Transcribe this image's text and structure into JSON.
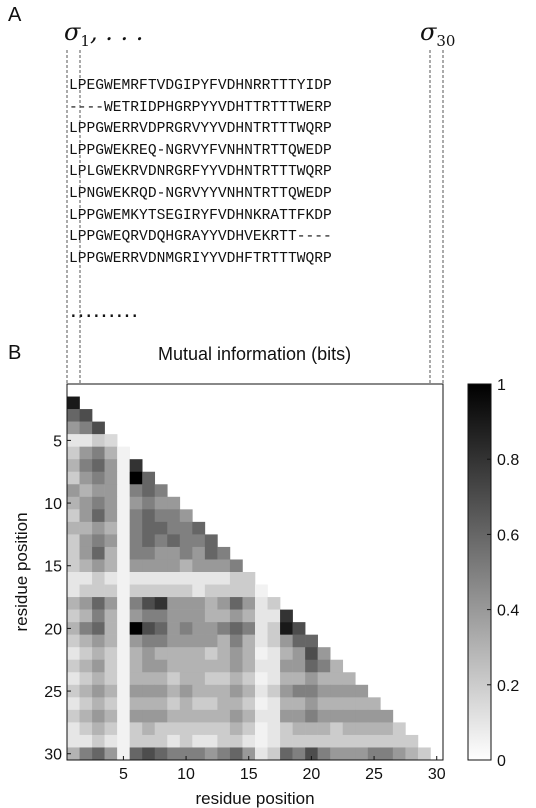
{
  "panels": {
    "a_label": "A",
    "b_label": "B"
  },
  "sigma": {
    "left_symbol": "σ",
    "left_subscript": "1",
    "left_suffix": ", . . .",
    "right_symbol": "σ",
    "right_subscript": "30"
  },
  "sequences": [
    "LPEGWEMRFTVDGIPYFVDHNRRTTTYIDP",
    "----WETRIDPHGRPYYVDHTTRTTTWERP",
    "LPPGWERRVDPRGRVYYVDHNTRTTTWQRP",
    "LPPGWEKREQ-NGRVYFVNHNTRTTQWEDP",
    "LPLGWEKRVDNRGRFYYVDHNTRTTTWQRP",
    "LPNGWEKRQD-NGRVYYVNHNTRTTQWEDP",
    "LPPGWEMKYTSEGIRYFVDHNKRATTFKDP",
    "LPPGWEQRVDQHGRAYYVDHVEKRTT----",
    "LPPGWERRVDNMGRIYYVDHFTRTTTWQRP"
  ],
  "ellipsis": ".........",
  "chart_data": {
    "type": "heatmap",
    "title": "Mutual information (bits)",
    "xlabel": "residue position",
    "ylabel": "residue position",
    "x_ticks": [
      5,
      10,
      15,
      20,
      25,
      30
    ],
    "y_ticks": [
      5,
      10,
      15,
      20,
      25,
      30
    ],
    "n": 30,
    "colorbar": {
      "min": 0,
      "max": 1,
      "ticks": [
        0,
        0.2,
        0.4,
        0.6,
        0.8,
        1
      ],
      "colormap": "white-to-black"
    },
    "rows": [
      [],
      [
        0.9
      ],
      [
        0.6,
        0.7
      ],
      [
        0.4,
        0.5,
        0.7
      ],
      [
        0.1,
        0.1,
        0.2,
        0.15
      ],
      [
        0.2,
        0.4,
        0.5,
        0.3,
        0.05
      ],
      [
        0.3,
        0.5,
        0.6,
        0.4,
        0.05,
        0.8
      ],
      [
        0.2,
        0.4,
        0.5,
        0.4,
        0.05,
        1.0,
        0.6
      ],
      [
        0.4,
        0.3,
        0.4,
        0.4,
        0.05,
        0.5,
        0.6,
        0.5
      ],
      [
        0.3,
        0.4,
        0.5,
        0.4,
        0.05,
        0.4,
        0.5,
        0.4,
        0.4
      ],
      [
        0.2,
        0.4,
        0.6,
        0.4,
        0.05,
        0.5,
        0.6,
        0.5,
        0.5,
        0.4
      ],
      [
        0.3,
        0.3,
        0.4,
        0.3,
        0.05,
        0.5,
        0.6,
        0.6,
        0.5,
        0.5,
        0.6
      ],
      [
        0.2,
        0.4,
        0.5,
        0.4,
        0.05,
        0.5,
        0.6,
        0.5,
        0.6,
        0.5,
        0.5,
        0.6
      ],
      [
        0.2,
        0.4,
        0.6,
        0.3,
        0.05,
        0.5,
        0.5,
        0.4,
        0.4,
        0.5,
        0.4,
        0.6,
        0.5
      ],
      [
        0.2,
        0.3,
        0.4,
        0.3,
        0.05,
        0.4,
        0.4,
        0.4,
        0.4,
        0.3,
        0.4,
        0.4,
        0.4,
        0.5
      ],
      [
        0.1,
        0.1,
        0.2,
        0.1,
        0.05,
        0.1,
        0.1,
        0.1,
        0.1,
        0.1,
        0.1,
        0.1,
        0.1,
        0.2,
        0.2
      ],
      [
        0.1,
        0.2,
        0.2,
        0.2,
        0.05,
        0.2,
        0.2,
        0.2,
        0.2,
        0.2,
        0.1,
        0.2,
        0.2,
        0.2,
        0.2,
        0.05
      ],
      [
        0.3,
        0.4,
        0.6,
        0.4,
        0.05,
        0.5,
        0.7,
        0.8,
        0.4,
        0.4,
        0.4,
        0.3,
        0.4,
        0.6,
        0.4,
        0.1,
        0.2
      ],
      [
        0.2,
        0.3,
        0.5,
        0.3,
        0.05,
        0.4,
        0.5,
        0.5,
        0.4,
        0.4,
        0.4,
        0.3,
        0.3,
        0.4,
        0.3,
        0.1,
        0.1,
        0.8
      ],
      [
        0.3,
        0.5,
        0.6,
        0.3,
        0.05,
        1.0,
        0.7,
        0.6,
        0.4,
        0.5,
        0.4,
        0.4,
        0.5,
        0.6,
        0.5,
        0.1,
        0.2,
        0.9,
        0.7
      ],
      [
        0.2,
        0.3,
        0.4,
        0.3,
        0.05,
        0.4,
        0.5,
        0.5,
        0.4,
        0.4,
        0.4,
        0.4,
        0.3,
        0.5,
        0.3,
        0.1,
        0.2,
        0.4,
        0.6,
        0.6
      ],
      [
        0.1,
        0.2,
        0.3,
        0.2,
        0.05,
        0.3,
        0.4,
        0.3,
        0.3,
        0.3,
        0.3,
        0.2,
        0.3,
        0.4,
        0.3,
        0.05,
        0.1,
        0.3,
        0.4,
        0.7,
        0.4
      ],
      [
        0.2,
        0.3,
        0.4,
        0.2,
        0.05,
        0.3,
        0.4,
        0.4,
        0.3,
        0.3,
        0.3,
        0.3,
        0.3,
        0.4,
        0.3,
        0.1,
        0.1,
        0.4,
        0.4,
        0.6,
        0.5,
        0.3
      ],
      [
        0.1,
        0.2,
        0.3,
        0.2,
        0.05,
        0.3,
        0.3,
        0.3,
        0.2,
        0.3,
        0.3,
        0.2,
        0.2,
        0.3,
        0.2,
        0.05,
        0.1,
        0.3,
        0.3,
        0.4,
        0.3,
        0.3,
        0.3
      ],
      [
        0.2,
        0.3,
        0.4,
        0.3,
        0.05,
        0.4,
        0.4,
        0.4,
        0.3,
        0.4,
        0.3,
        0.3,
        0.3,
        0.4,
        0.3,
        0.1,
        0.2,
        0.4,
        0.5,
        0.5,
        0.4,
        0.4,
        0.4,
        0.4
      ],
      [
        0.1,
        0.2,
        0.3,
        0.2,
        0.05,
        0.3,
        0.3,
        0.3,
        0.2,
        0.3,
        0.2,
        0.2,
        0.3,
        0.3,
        0.2,
        0.05,
        0.1,
        0.3,
        0.3,
        0.4,
        0.3,
        0.3,
        0.3,
        0.3,
        0.3
      ],
      [
        0.2,
        0.3,
        0.4,
        0.3,
        0.05,
        0.4,
        0.4,
        0.4,
        0.3,
        0.3,
        0.3,
        0.3,
        0.3,
        0.4,
        0.3,
        0.1,
        0.1,
        0.4,
        0.4,
        0.5,
        0.4,
        0.4,
        0.4,
        0.4,
        0.4,
        0.4
      ],
      [
        0.1,
        0.2,
        0.3,
        0.2,
        0.05,
        0.2,
        0.3,
        0.2,
        0.2,
        0.2,
        0.2,
        0.2,
        0.2,
        0.3,
        0.2,
        0.05,
        0.1,
        0.2,
        0.3,
        0.3,
        0.3,
        0.2,
        0.3,
        0.3,
        0.3,
        0.3,
        0.2
      ],
      [
        0.1,
        0.1,
        0.2,
        0.1,
        0.05,
        0.2,
        0.2,
        0.2,
        0.1,
        0.2,
        0.1,
        0.1,
        0.2,
        0.2,
        0.1,
        0.05,
        0.1,
        0.2,
        0.2,
        0.2,
        0.2,
        0.2,
        0.2,
        0.2,
        0.2,
        0.2,
        0.2,
        0.2
      ],
      [
        0.3,
        0.5,
        0.6,
        0.4,
        0.05,
        0.6,
        0.7,
        0.6,
        0.5,
        0.5,
        0.5,
        0.4,
        0.5,
        0.6,
        0.4,
        0.1,
        0.2,
        0.6,
        0.5,
        0.7,
        0.5,
        0.4,
        0.4,
        0.4,
        0.5,
        0.5,
        0.4,
        0.3,
        0.2
      ]
    ]
  }
}
